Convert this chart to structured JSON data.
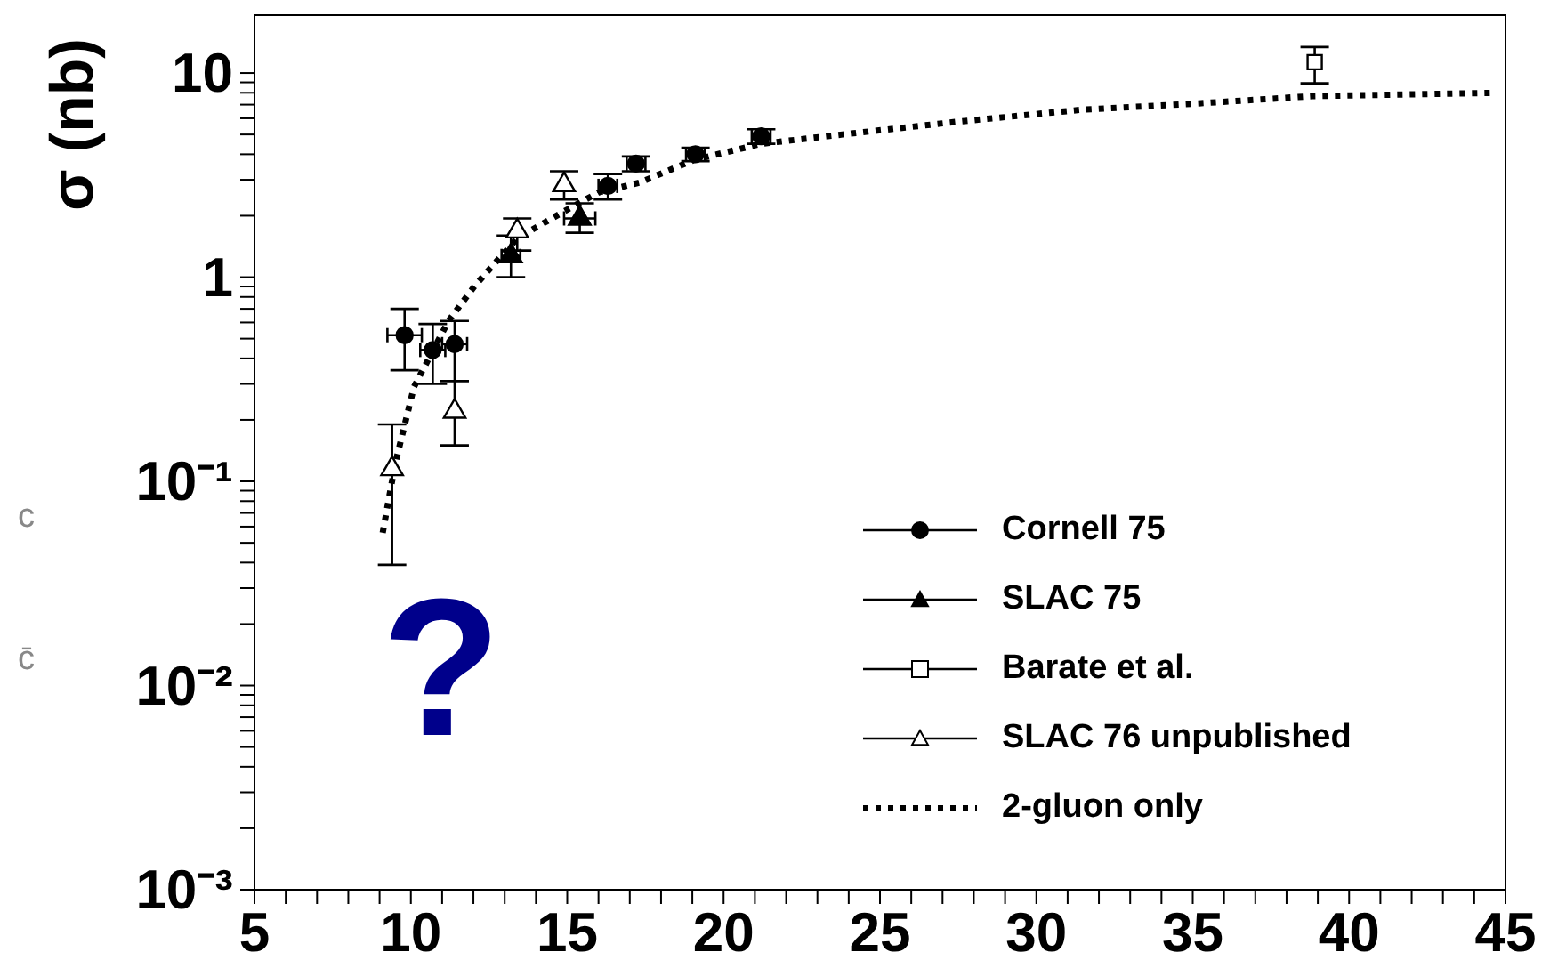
{
  "chart_data": {
    "type": "scatter",
    "ylabel": "σ (nb)",
    "log": "y",
    "grid": false,
    "legend": "bottom right",
    "xlim": [
      5,
      45
    ],
    "xticks": [
      5,
      {
        "value": 6,
        "label": null
      },
      {
        "value": 7,
        "label": null
      },
      {
        "value": 8,
        "label": null
      },
      {
        "value": 9,
        "label": null
      },
      10,
      {
        "value": 11,
        "label": null
      },
      {
        "value": 12,
        "label": null
      },
      {
        "value": 13,
        "label": null
      },
      {
        "value": 14,
        "label": null
      },
      15,
      {
        "value": 16,
        "label": null
      },
      {
        "value": 17,
        "label": null
      },
      {
        "value": 18,
        "label": null
      },
      {
        "value": 19,
        "label": null
      },
      20,
      {
        "value": 21,
        "label": null
      },
      {
        "value": 22,
        "label": null
      },
      {
        "value": 23,
        "label": null
      },
      {
        "value": 24,
        "label": null
      },
      25,
      {
        "value": 26,
        "label": null
      },
      {
        "value": 27,
        "label": null
      },
      {
        "value": 28,
        "label": null
      },
      {
        "value": 29,
        "label": null
      },
      30,
      {
        "value": 31,
        "label": null
      },
      {
        "value": 32,
        "label": null
      },
      {
        "value": 33,
        "label": null
      },
      {
        "value": 34,
        "label": null
      },
      35,
      {
        "value": 36,
        "label": null
      },
      {
        "value": 37,
        "label": null
      },
      {
        "value": 38,
        "label": null
      },
      {
        "value": 39,
        "label": null
      },
      40,
      {
        "value": 41,
        "label": null
      },
      {
        "value": 42,
        "label": null
      },
      {
        "value": 43,
        "label": null
      },
      {
        "value": 44,
        "label": null
      },
      45
    ],
    "ylim": [
      0.001,
      19.4
    ],
    "yticks": [
      {
        "value": 0.001,
        "label": "10⁻³"
      },
      {
        "value": 0.002,
        "label": null
      },
      {
        "value": 0.003,
        "label": null
      },
      {
        "value": 0.004,
        "label": null
      },
      {
        "value": 0.005,
        "label": null
      },
      {
        "value": 0.006,
        "label": null
      },
      {
        "value": 0.007,
        "label": null
      },
      {
        "value": 0.008,
        "label": null
      },
      {
        "value": 0.009,
        "label": null
      },
      {
        "value": 0.01,
        "label": "10⁻²"
      },
      {
        "value": 0.02,
        "label": null
      },
      {
        "value": 0.03,
        "label": null
      },
      {
        "value": 0.04,
        "label": null
      },
      {
        "value": 0.05,
        "label": null
      },
      {
        "value": 0.06,
        "label": null
      },
      {
        "value": 0.07,
        "label": null
      },
      {
        "value": 0.08,
        "label": null
      },
      {
        "value": 0.09,
        "label": null
      },
      {
        "value": 0.1,
        "label": "10⁻¹"
      },
      {
        "value": 0.2,
        "label": null
      },
      {
        "value": 0.3,
        "label": null
      },
      {
        "value": 0.4,
        "label": null
      },
      {
        "value": 0.5,
        "label": null
      },
      {
        "value": 0.6,
        "label": null
      },
      {
        "value": 0.7,
        "label": null
      },
      {
        "value": 0.8,
        "label": null
      },
      {
        "value": 0.9,
        "label": null
      },
      1,
      {
        "value": 2,
        "label": null
      },
      {
        "value": 3,
        "label": null
      },
      {
        "value": 4,
        "label": null
      },
      {
        "value": 5,
        "label": null
      },
      {
        "value": 6,
        "label": null
      },
      {
        "value": 7,
        "label": null
      },
      {
        "value": 8,
        "label": null
      },
      {
        "value": 9,
        "label": null
      },
      10
    ],
    "annotations": [
      "?",
      "c",
      "c̄"
    ],
    "series": [
      {
        "name": "Cornell 75",
        "marker": "circle",
        "color": "#000000",
        "x": [
          9.8,
          10.7,
          11.4,
          16.3,
          17.2,
          19.1,
          21.2
        ],
        "values": [
          0.52,
          0.44,
          0.47,
          2.8,
          3.6,
          4.0,
          4.9
        ],
        "errors": [
          [
            0.35,
            0.7
          ],
          [
            0.3,
            0.59
          ],
          [
            0.31,
            0.61
          ],
          [
            2.4,
            3.2
          ],
          [
            3.3,
            3.9
          ],
          [
            3.7,
            4.3
          ],
          [
            4.5,
            5.3
          ]
        ],
        "xerrors": [
          0.55,
          0.4,
          0.4,
          0.3,
          0.3,
          0.3,
          0.3
        ]
      },
      {
        "name": "SLAC 75",
        "marker": "triangle",
        "color": "#000000",
        "x": [
          13.2,
          15.4
        ],
        "values": [
          1.27,
          1.94
        ],
        "errors": [
          [
            1.0,
            1.6
          ],
          [
            1.65,
            2.3
          ]
        ],
        "xerrors": [
          0.3,
          0.5
        ]
      },
      {
        "name": "Barate et al.",
        "marker": "square",
        "color": "#ffffff",
        "x": [
          38.9
        ],
        "values": [
          11.3
        ],
        "errors": [
          [
            8.9,
            13.4
          ]
        ]
      },
      {
        "name": "SLAC 76 unpublished",
        "marker": "triangle",
        "color": "#ffffff",
        "x": [
          9.4,
          11.4,
          13.4,
          14.9
        ],
        "values": [
          0.115,
          0.22,
          1.68,
          2.83
        ],
        "errors": [
          [
            0.039,
            0.19
          ],
          [
            0.15,
            0.31
          ],
          [
            1.35,
            1.94
          ],
          [
            2.4,
            3.3
          ]
        ]
      },
      {
        "name": "2-gluon only",
        "type": "line",
        "line_style": "dotted",
        "color": "#000000",
        "x": [
          9.1,
          9.5,
          10.1,
          11.2,
          12.05,
          13.4,
          14.9,
          16.0,
          17.3,
          19.05,
          21.2,
          23.8,
          27.6,
          31.4,
          35.2,
          38.8,
          44.7
        ],
        "values": [
          0.056,
          0.122,
          0.29,
          0.61,
          0.91,
          1.55,
          2.1,
          2.6,
          2.9,
          3.75,
          4.5,
          5.0,
          5.8,
          6.6,
          7.1,
          7.7,
          8.0
        ]
      }
    ]
  }
}
